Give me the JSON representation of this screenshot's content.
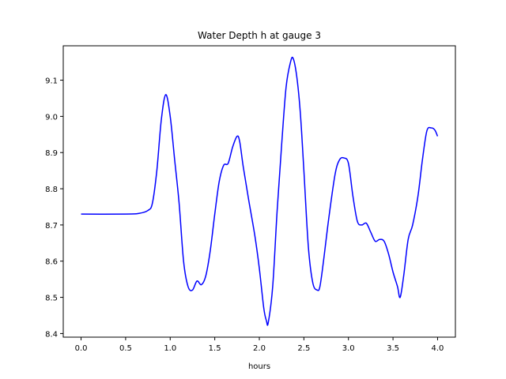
{
  "chart_data": {
    "type": "line",
    "title": "Water Depth h at gauge 3",
    "xlabel": "hours",
    "ylabel": "",
    "xlim": [
      -0.2,
      4.2
    ],
    "ylim": [
      8.39,
      9.195
    ],
    "xticks": [
      0.0,
      0.5,
      1.0,
      1.5,
      2.0,
      2.5,
      3.0,
      3.5,
      4.0
    ],
    "xtick_labels": [
      "0.0",
      "0.5",
      "1.0",
      "1.5",
      "2.0",
      "2.5",
      "3.0",
      "3.5",
      "4.0"
    ],
    "yticks": [
      8.4,
      8.5,
      8.6,
      8.7,
      8.8,
      8.9,
      9.0,
      9.1
    ],
    "ytick_labels": [
      "8.4",
      "8.5",
      "8.6",
      "8.7",
      "8.8",
      "8.9",
      "9.0",
      "9.1"
    ],
    "grid": false,
    "series": [
      {
        "color": "#0000ff",
        "x": [
          0.0,
          0.5,
          0.65,
          0.75,
          0.8,
          0.85,
          0.9,
          0.95,
          1.0,
          1.05,
          1.1,
          1.15,
          1.2,
          1.25,
          1.3,
          1.35,
          1.4,
          1.45,
          1.5,
          1.55,
          1.6,
          1.65,
          1.7,
          1.75,
          1.78,
          1.82,
          1.88,
          1.95,
          2.0,
          2.05,
          2.08,
          2.1,
          2.15,
          2.2,
          2.25,
          2.3,
          2.35,
          2.38,
          2.42,
          2.46,
          2.5,
          2.55,
          2.6,
          2.65,
          2.68,
          2.72,
          2.78,
          2.85,
          2.9,
          2.95,
          3.0,
          3.05,
          3.1,
          3.15,
          3.2,
          3.25,
          3.3,
          3.35,
          3.4,
          3.45,
          3.5,
          3.55,
          3.58,
          3.62,
          3.67,
          3.72,
          3.78,
          3.83,
          3.88,
          3.93,
          3.97,
          4.0
        ],
        "values": [
          8.73,
          8.73,
          8.732,
          8.74,
          8.76,
          8.85,
          8.99,
          9.06,
          9.0,
          8.88,
          8.76,
          8.6,
          8.53,
          8.52,
          8.545,
          8.535,
          8.56,
          8.63,
          8.73,
          8.82,
          8.865,
          8.87,
          8.915,
          8.945,
          8.93,
          8.86,
          8.77,
          8.67,
          8.58,
          8.47,
          8.435,
          8.43,
          8.53,
          8.74,
          8.92,
          9.08,
          9.15,
          9.16,
          9.11,
          9.01,
          8.85,
          8.64,
          8.54,
          8.52,
          8.53,
          8.6,
          8.72,
          8.84,
          8.88,
          8.885,
          8.87,
          8.78,
          8.71,
          8.7,
          8.705,
          8.68,
          8.655,
          8.66,
          8.655,
          8.62,
          8.57,
          8.53,
          8.5,
          8.56,
          8.66,
          8.7,
          8.78,
          8.88,
          8.96,
          8.968,
          8.962,
          8.945
        ]
      }
    ]
  }
}
